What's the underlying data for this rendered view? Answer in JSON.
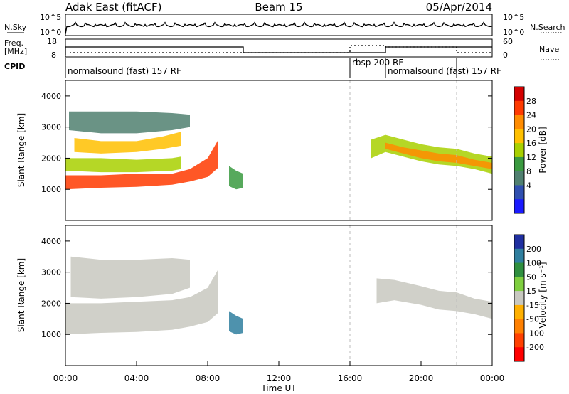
{
  "header": {
    "site": "Adak East (fitACF)",
    "beam": "Beam 15",
    "date": "05/Apr/2014"
  },
  "params": {
    "nsky_label": "N.Sky",
    "nsky_ticks": [
      "10^5",
      "10^0"
    ],
    "nsearch_label": "N.Search",
    "nsearch_ticks": [
      "10^5",
      "10^0"
    ],
    "freq_label_1": "Freq.",
    "freq_label_2": "[MHz]",
    "freq_ticks": [
      "18",
      "8"
    ],
    "nave_label": "Nave",
    "nave_ticks": [
      "60",
      "0"
    ],
    "cpid_label": "CPID",
    "cpid_segments": [
      {
        "label": "normalsound (fast) 157 RF",
        "start": 0,
        "end": 16
      },
      {
        "label": "rbsp 200 RF",
        "start": 16,
        "end": 18
      },
      {
        "label": "normalsound (fast) 157 RF",
        "start": 18,
        "end": 22
      }
    ]
  },
  "colorbars": {
    "power": {
      "label": "Power [dB]",
      "ticks": [
        "28",
        "24",
        "20",
        "16",
        "12",
        "8",
        "4"
      ],
      "colors": [
        "#d40000",
        "#ff3a00",
        "#ff8c00",
        "#ffc000",
        "#a8d000",
        "#3a9a40",
        "#508070",
        "#3050b0",
        "#1a1aff"
      ]
    },
    "velocity": {
      "label": "Velocity [m s⁻¹]",
      "ticks": [
        "200",
        "100",
        "50",
        "15",
        "-15",
        "-50",
        "-100",
        "-200"
      ],
      "colors": [
        "#1f2fa0",
        "#2f7f9f",
        "#2f8f3f",
        "#7fcf3f",
        "#c8c8c0",
        "#ffb000",
        "#ff8000",
        "#ff4000",
        "#ff0000"
      ]
    }
  },
  "axes": {
    "ylabel": "Slant Range [km]",
    "yticks": [
      "4000",
      "3000",
      "2000",
      "1000"
    ],
    "xticks": [
      "00:00",
      "04:00",
      "08:00",
      "12:00",
      "16:00",
      "20:00",
      "00:00"
    ],
    "xlabel": "Time UT"
  },
  "chart_data": {
    "type": "heatmap",
    "x_unit": "hours UT",
    "xlim": [
      0,
      24
    ],
    "ylim": [
      0,
      4500
    ],
    "panels": [
      {
        "name": "power",
        "bands": [
          {
            "x": [
              0,
              2,
              4,
              6,
              7,
              8,
              8.6
            ],
            "y_low": [
              1000,
              1050,
              1080,
              1150,
              1250,
              1400,
              1700
            ],
            "y_high": [
              1450,
              1450,
              1500,
              1500,
              1650,
              2000,
              2600
            ],
            "level": 1
          },
          {
            "x": [
              0,
              2,
              4,
              6,
              6.5
            ],
            "y_low": [
              1600,
              1550,
              1550,
              1600,
              1650
            ],
            "y_high": [
              2000,
              2000,
              1950,
              2000,
              2050
            ],
            "level": 4
          },
          {
            "x": [
              0.5,
              2,
              4,
              5.5,
              6.5
            ],
            "y_low": [
              2200,
              2150,
              2200,
              2300,
              2400
            ],
            "y_high": [
              2650,
              2550,
              2550,
              2700,
              2850
            ],
            "level": 3
          },
          {
            "x": [
              0.2,
              2,
              4,
              6,
              7
            ],
            "y_low": [
              2900,
              2800,
              2800,
              2900,
              3000
            ],
            "y_high": [
              3500,
              3500,
              3500,
              3450,
              3400
            ],
            "level": 6
          },
          {
            "x": [
              9.2,
              9.6,
              10
            ],
            "y_low": [
              1100,
              1000,
              1050
            ],
            "y_high": [
              1750,
              1600,
              1500
            ],
            "level": 5
          },
          {
            "x": [
              17.2,
              18,
              19,
              20,
              21,
              22,
              23,
              24
            ],
            "y_low": [
              2000,
              2200,
              2050,
              1900,
              1800,
              1750,
              1650,
              1500
            ],
            "y_high": [
              2600,
              2750,
              2600,
              2450,
              2350,
              2300,
              2150,
              2050
            ],
            "level": 4
          },
          {
            "x": [
              18,
              19,
              20,
              21,
              22,
              23,
              24
            ],
            "y_low": [
              2300,
              2150,
              2000,
              1900,
              1850,
              1750,
              1650
            ],
            "y_high": [
              2500,
              2350,
              2250,
              2150,
              2100,
              1950,
              1850
            ],
            "level": 2
          }
        ]
      },
      {
        "name": "velocity",
        "bands": [
          {
            "x": [
              0,
              2,
              4,
              6,
              7,
              8,
              8.6
            ],
            "y_low": [
              1000,
              1050,
              1080,
              1150,
              1250,
              1400,
              1700
            ],
            "y_high": [
              2000,
              2000,
              2050,
              2100,
              2200,
              2500,
              3100
            ],
            "level": 4
          },
          {
            "x": [
              0.3,
              2,
              4,
              6,
              7
            ],
            "y_low": [
              2200,
              2150,
              2200,
              2300,
              2500
            ],
            "y_high": [
              3500,
              3400,
              3400,
              3450,
              3400
            ],
            "level": 4
          },
          {
            "x": [
              9.2,
              9.6,
              10
            ],
            "y_low": [
              1100,
              1000,
              1050
            ],
            "y_high": [
              1750,
              1600,
              1500
            ],
            "level": 1
          },
          {
            "x": [
              17.5,
              18.5,
              20,
              21,
              22,
              23,
              24
            ],
            "y_low": [
              2000,
              2100,
              1950,
              1800,
              1750,
              1650,
              1500
            ],
            "y_high": [
              2800,
              2750,
              2550,
              2400,
              2350,
              2150,
              2050
            ],
            "level": 4
          }
        ]
      }
    ]
  }
}
